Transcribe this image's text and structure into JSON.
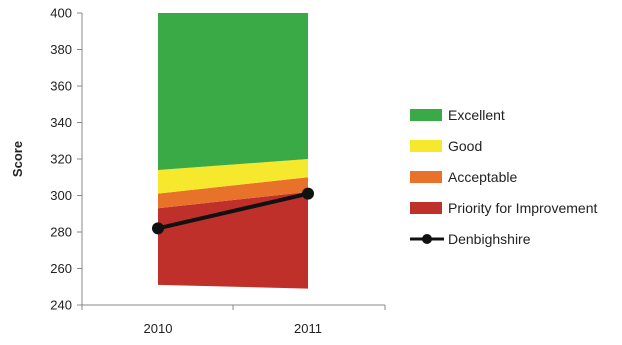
{
  "chart_data": {
    "type": "area",
    "x": [
      "2010",
      "2011"
    ],
    "ylabel": "Score",
    "ylim": [
      240,
      400
    ],
    "yticks": [
      240,
      260,
      280,
      300,
      320,
      340,
      360,
      380,
      400
    ],
    "bands": [
      {
        "name": "Priority for Improvement",
        "color": "#c0302a",
        "lower": [
          251,
          249
        ],
        "upper": [
          293,
          302
        ]
      },
      {
        "name": "Acceptable",
        "color": "#e8722a",
        "lower": [
          293,
          302
        ],
        "upper": [
          301,
          310
        ]
      },
      {
        "name": "Good",
        "color": "#f5e82d",
        "lower": [
          301,
          310
        ],
        "upper": [
          314,
          320
        ]
      },
      {
        "name": "Excellent",
        "color": "#3aaa46",
        "lower": [
          314,
          320
        ],
        "upper": [
          400,
          400
        ]
      }
    ],
    "series": [
      {
        "name": "Denbighshire",
        "color": "#111111",
        "values": [
          282,
          301
        ]
      }
    ],
    "legend": {
      "position": "right",
      "entries": [
        "Excellent",
        "Good",
        "Acceptable",
        "Priority for Improvement",
        "Denbighshire"
      ]
    },
    "grid": false
  }
}
